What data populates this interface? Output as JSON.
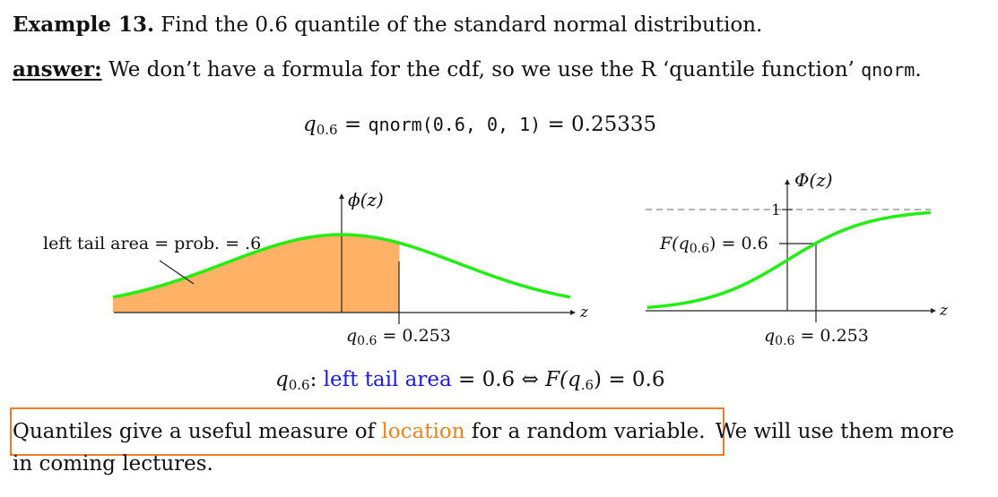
{
  "example": {
    "label": "Example 13.",
    "question": "Find the 0.6 quantile of the standard normal distribution."
  },
  "answer": {
    "label": "answer:",
    "text_before": "We don’t have a formula for the cdf, so we use the R ‘quantile function’",
    "function_name": "qnorm",
    "text_after": "."
  },
  "formula": {
    "q_symbol": "q",
    "q_sub": "0.6",
    "equals1": " = ",
    "code": "qnorm(0.6, 0, 1)",
    "result": " = 0.25335"
  },
  "left_plot": {
    "y_label": "ϕ(z)",
    "x_label": "z",
    "annotation": "left tail area = prob. = .6",
    "q_symbol": "q",
    "q_sub": "0.6",
    "q_value": " = 0.253"
  },
  "right_plot": {
    "y_label": "Φ(z)",
    "x_label": "z",
    "tick_one": "1",
    "f_label": "F(q",
    "f_sub": "0.6",
    "f_value": ") = 0.6",
    "q_symbol": "q",
    "q_sub": "0.6",
    "q_value": " = 0.253"
  },
  "relation": {
    "q_symbol": "q",
    "q_sub": "0.6",
    "colon": ":",
    "blue_text": "left tail area",
    "mid": " = 0.6 ⇔ ",
    "f_part": "F(q",
    "f_sub": ".6",
    "end": ") = 0.6"
  },
  "conclusion": {
    "text1": "Quantiles give a useful measure of",
    "highlight_word": "location",
    "text2": "for a random variable.",
    "text3": "We will use them more",
    "line2": "in coming lectures."
  },
  "colors": {
    "curve": "#22ee11",
    "fill": "#ffb266",
    "blue": "#1a1af0",
    "orange": "#f0821e",
    "box": "#ee7d2a"
  },
  "plot_params": {
    "quantile": 0.253,
    "probability": 0.6
  }
}
